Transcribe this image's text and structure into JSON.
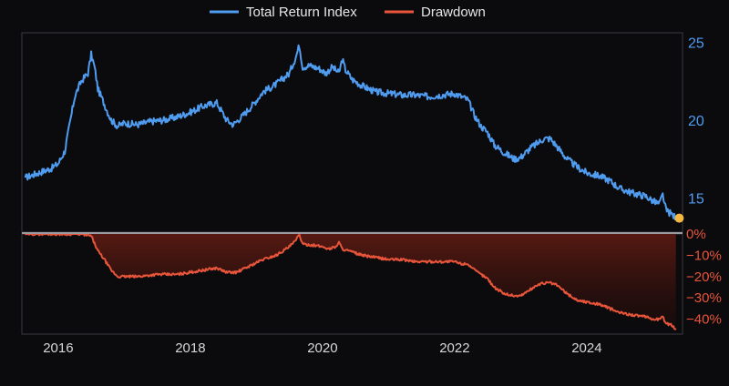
{
  "chart_data": [
    {
      "type": "line",
      "title": "",
      "xlabel": "",
      "ylabel": "",
      "x_ticks": [
        "2016",
        "2018",
        "2020",
        "2022",
        "2024"
      ],
      "y_ticks": [
        "15",
        "20",
        "25"
      ],
      "xlim": [
        2015.45,
        2025.45
      ],
      "ylim": [
        12.8,
        25.6
      ],
      "grid": false,
      "legend": "top-center",
      "series": [
        {
          "name": "Total Return Index",
          "color": "#4f9cf0",
          "x": [
            2015.5,
            2015.7,
            2015.9,
            2016.0,
            2016.1,
            2016.25,
            2016.35,
            2016.45,
            2016.5,
            2016.55,
            2016.6,
            2016.7,
            2016.8,
            2016.9,
            2017.0,
            2017.2,
            2017.4,
            2017.6,
            2017.8,
            2018.0,
            2018.2,
            2018.4,
            2018.55,
            2018.65,
            2018.8,
            2018.95,
            2019.1,
            2019.3,
            2019.5,
            2019.6,
            2019.65,
            2019.7,
            2019.8,
            2019.95,
            2020.05,
            2020.15,
            2020.25,
            2020.3,
            2020.35,
            2020.45,
            2020.6,
            2020.8,
            2021.0,
            2021.2,
            2021.4,
            2021.6,
            2021.8,
            2022.0,
            2022.1,
            2022.2,
            2022.3,
            2022.4,
            2022.5,
            2022.6,
            2022.75,
            2022.9,
            2023.0,
            2023.15,
            2023.25,
            2023.35,
            2023.45,
            2023.55,
            2023.7,
            2023.85,
            2024.0,
            2024.2,
            2024.35,
            2024.5,
            2024.7,
            2024.9,
            2025.0,
            2025.1,
            2025.15,
            2025.2,
            2025.3,
            2025.35
          ],
          "values": [
            16.3,
            16.6,
            16.9,
            17.2,
            18.0,
            21.5,
            22.5,
            23.0,
            24.2,
            23.4,
            22.0,
            21.0,
            20.0,
            19.6,
            19.8,
            19.7,
            19.9,
            20.0,
            20.2,
            20.5,
            20.9,
            21.1,
            20.0,
            19.7,
            20.3,
            21.0,
            21.8,
            22.3,
            23.0,
            24.1,
            24.8,
            23.4,
            23.5,
            23.3,
            23.0,
            23.4,
            23.0,
            23.9,
            23.2,
            22.6,
            22.2,
            21.8,
            21.7,
            21.6,
            21.6,
            21.5,
            21.6,
            21.7,
            21.5,
            21.3,
            20.3,
            19.6,
            19.2,
            18.4,
            17.9,
            17.5,
            17.6,
            18.2,
            18.5,
            18.8,
            18.8,
            18.3,
            17.5,
            17.0,
            16.6,
            16.4,
            16.1,
            15.6,
            15.3,
            15.1,
            14.8,
            14.6,
            15.2,
            14.2,
            13.9,
            13.7
          ]
        }
      ],
      "marker": {
        "x": 2025.4,
        "value": 13.7,
        "color": "#f5b942"
      }
    },
    {
      "type": "area",
      "title": "",
      "xlabel": "",
      "ylabel": "",
      "x_ticks": [
        "2016",
        "2018",
        "2020",
        "2022",
        "2024"
      ],
      "y_ticks": [
        "0%",
        "−10%",
        "−20%",
        "−30%",
        "−40%"
      ],
      "xlim": [
        2015.45,
        2025.45
      ],
      "ylim": [
        -47,
        0
      ],
      "grid": false,
      "series": [
        {
          "name": "Drawdown",
          "color": "#e8553a",
          "fill": "#4a1710",
          "x": [
            2015.5,
            2015.7,
            2016.0,
            2016.2,
            2016.35,
            2016.5,
            2016.6,
            2016.7,
            2016.8,
            2016.9,
            2017.0,
            2017.2,
            2017.5,
            2017.8,
            2018.0,
            2018.2,
            2018.4,
            2018.55,
            2018.7,
            2018.9,
            2019.1,
            2019.3,
            2019.5,
            2019.6,
            2019.65,
            2019.7,
            2019.8,
            2020.0,
            2020.1,
            2020.2,
            2020.25,
            2020.3,
            2020.4,
            2020.6,
            2020.8,
            2021.0,
            2021.2,
            2021.4,
            2021.6,
            2021.8,
            2022.0,
            2022.1,
            2022.2,
            2022.3,
            2022.4,
            2022.5,
            2022.6,
            2022.75,
            2022.9,
            2023.0,
            2023.15,
            2023.25,
            2023.35,
            2023.45,
            2023.55,
            2023.7,
            2023.85,
            2024.0,
            2024.2,
            2024.35,
            2024.5,
            2024.7,
            2024.9,
            2025.0,
            2025.1,
            2025.15,
            2025.2,
            2025.3,
            2025.35
          ],
          "values": [
            0,
            0,
            0,
            0,
            0,
            -1,
            -8,
            -12,
            -17,
            -20,
            -20,
            -20,
            -19,
            -19,
            -18,
            -17,
            -16,
            -18,
            -18,
            -15,
            -12,
            -10,
            -6,
            -3,
            0,
            -5,
            -5,
            -6,
            -7,
            -6,
            -4,
            -7,
            -8,
            -10,
            -11,
            -12,
            -12,
            -13,
            -13,
            -13,
            -13,
            -14,
            -14,
            -17,
            -19,
            -21,
            -25,
            -28,
            -29,
            -29,
            -26,
            -24,
            -23,
            -23,
            -24,
            -28,
            -31,
            -32,
            -33,
            -35,
            -37,
            -38,
            -39,
            -40,
            -40,
            -39,
            -42,
            -43,
            -45
          ]
        }
      ]
    }
  ]
}
